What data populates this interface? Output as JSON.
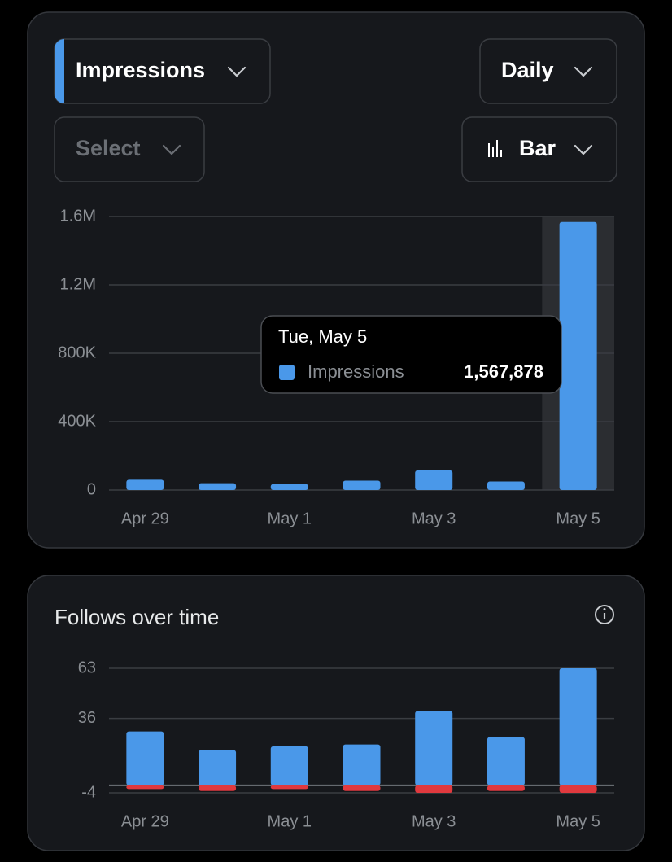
{
  "controls": {
    "metric": "Impressions",
    "interval": "Daily",
    "compare": "Select",
    "chart_style": "Bar"
  },
  "charts": [
    {
      "type": "bar",
      "categories": [
        "Apr 29",
        null,
        "May 1",
        null,
        "May 3",
        null,
        "May 5"
      ],
      "series": [
        {
          "name": "Impressions",
          "color": "#4a98e9",
          "values": [
            60000,
            40000,
            35000,
            55000,
            115000,
            50000,
            1567878
          ]
        }
      ],
      "ylim": [
        0,
        1600000
      ],
      "yticks": [
        0,
        {
          "value": 400000,
          "label": "400K"
        },
        {
          "value": 800000,
          "label": "800K"
        },
        {
          "value": 1200000,
          "label": "1.2M"
        },
        {
          "value": 1600000,
          "label": "1.6M"
        }
      ],
      "grid": true,
      "tooltip": {
        "index": 6,
        "title": "Tue, May 5",
        "value_label": "1,567,878"
      }
    },
    {
      "type": "bar",
      "title": "Follows over time",
      "stacked": true,
      "categories": [
        "Apr 29",
        null,
        "May 1",
        null,
        "May 3",
        null,
        "May 5"
      ],
      "series": [
        {
          "color": "#4a98e9",
          "values": [
            29,
            19,
            21,
            22,
            40,
            26,
            63
          ]
        },
        {
          "color": "#e0393e",
          "values": [
            -2,
            -3,
            -2,
            -3,
            -4,
            -3,
            -4
          ]
        }
      ],
      "ylim": [
        -4,
        63
      ],
      "yticks": [
        -4,
        36,
        63
      ],
      "grid": true
    }
  ]
}
